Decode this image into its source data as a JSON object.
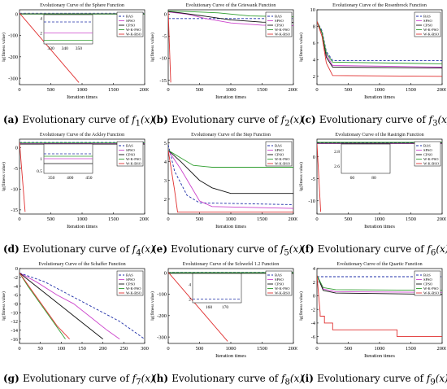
{
  "chart_data": [
    {
      "id": "a",
      "type": "line",
      "title": "Evolutionary Curve of the Sphere Function",
      "xlabel": "Iteration times",
      "ylabel": "lg(fitness value)",
      "xlim": [
        0,
        2000
      ],
      "ylim": [
        -330,
        20
      ],
      "xticks": [
        0,
        500,
        1000,
        1500,
        2000
      ],
      "yticks": [
        0,
        -100,
        -200,
        -300
      ],
      "legend": "top-right",
      "series": [
        {
          "name": "BAS",
          "color": "#1f2fa8",
          "dash": "3,2",
          "x": [
            0,
            2000
          ],
          "y": [
            3.5,
            3.5
          ]
        },
        {
          "name": "SPSO",
          "color": "#cc44cc",
          "x": [
            0,
            2000
          ],
          "y": [
            2,
            2
          ]
        },
        {
          "name": "CPSO",
          "color": "#111111",
          "x": [
            0,
            2000
          ],
          "y": [
            0,
            0
          ]
        },
        {
          "name": "W-K-PSO",
          "color": "#2f9e2f",
          "x": [
            0,
            2000
          ],
          "y": [
            1,
            1
          ]
        },
        {
          "name": "W-K-BSO",
          "color": "#e03030",
          "x": [
            0,
            950
          ],
          "y": [
            4,
            -320
          ]
        }
      ],
      "inset": {
        "xlim": [
          325,
          360
        ],
        "ylim": [
          0.5,
          4.5
        ],
        "xticks": [
          330,
          340,
          350
        ],
        "yticks": [
          2,
          4
        ]
      }
    },
    {
      "id": "b",
      "type": "line",
      "title": "Evolutionary Curve of the Griewank Function",
      "xlabel": "Iteration times",
      "ylabel": "lg(fitness value)",
      "xlim": [
        0,
        2000
      ],
      "ylim": [
        -16,
        1
      ],
      "xticks": [
        0,
        500,
        1000,
        1500,
        2000
      ],
      "yticks": [
        0,
        -5,
        -10,
        -15
      ],
      "legend": "right",
      "series": [
        {
          "name": "BAS",
          "color": "#1f2fa8",
          "dash": "3,2",
          "x": [
            0,
            2000
          ],
          "y": [
            -1,
            -1
          ]
        },
        {
          "name": "SPSO",
          "color": "#cc44cc",
          "x": [
            0,
            300,
            600,
            1000,
            1500,
            2000
          ],
          "y": [
            0.5,
            0,
            -1,
            -2,
            -2.5,
            -2.6
          ]
        },
        {
          "name": "CPSO",
          "color": "#111111",
          "x": [
            0,
            200,
            500,
            1000,
            1500,
            2000
          ],
          "y": [
            0.6,
            0.3,
            -0.3,
            -1.3,
            -1.8,
            -1.9
          ]
        },
        {
          "name": "W-K-PSO",
          "color": "#2f9e2f",
          "x": [
            0,
            300,
            800,
            1300,
            2000
          ],
          "y": [
            0.7,
            0.6,
            0.3,
            -0.4,
            -0.6
          ]
        },
        {
          "name": "W-K-BSO",
          "color": "#e03030",
          "x": [
            0,
            40
          ],
          "y": [
            0.5,
            -15.5
          ]
        }
      ]
    },
    {
      "id": "c",
      "type": "line",
      "title": "Evolutionary Curve of the Rosenbrock Function",
      "xlabel": "Iteration times",
      "ylabel": "lg(fitness value)",
      "xlim": [
        0,
        2000
      ],
      "ylim": [
        1,
        10
      ],
      "xticks": [
        0,
        500,
        1000,
        1500,
        2000
      ],
      "yticks": [
        2,
        4,
        6,
        8,
        10
      ],
      "legend": "top-right",
      "series": [
        {
          "name": "BAS",
          "color": "#1f2fa8",
          "dash": "3,2",
          "x": [
            0,
            80,
            150,
            250,
            2000
          ],
          "y": [
            8.6,
            7.5,
            5,
            3.9,
            3.9
          ]
        },
        {
          "name": "SPSO",
          "color": "#cc44cc",
          "x": [
            0,
            80,
            150,
            250,
            2000
          ],
          "y": [
            8.6,
            7.3,
            4.6,
            3.3,
            3.1
          ]
        },
        {
          "name": "CPSO",
          "color": "#111111",
          "x": [
            0,
            80,
            150,
            250,
            2000
          ],
          "y": [
            8.6,
            7.2,
            4.3,
            3.1,
            3.0
          ]
        },
        {
          "name": "W-K-PSO",
          "color": "#2f9e2f",
          "x": [
            0,
            80,
            150,
            250,
            2000
          ],
          "y": [
            8.6,
            7.3,
            4.8,
            3.7,
            3.5
          ]
        },
        {
          "name": "W-K-BSO",
          "color": "#e03030",
          "x": [
            0,
            80,
            150,
            250,
            2000
          ],
          "y": [
            8.6,
            6.8,
            3.6,
            2.1,
            2.0
          ]
        }
      ]
    },
    {
      "id": "d",
      "type": "line",
      "title": "Evolutionary Curve of the Ackley Function",
      "xlabel": "Iteration times",
      "ylabel": "lg(fitness value)",
      "xlim": [
        0,
        2000
      ],
      "ylim": [
        -16,
        2
      ],
      "xticks": [
        0,
        500,
        1000,
        1500,
        2000
      ],
      "yticks": [
        0,
        -5,
        -10,
        -15
      ],
      "legend": "top-right",
      "series": [
        {
          "name": "BAS",
          "color": "#1f2fa8",
          "dash": "3,2",
          "x": [
            0,
            2000
          ],
          "y": [
            1.2,
            1.2
          ]
        },
        {
          "name": "SPSO",
          "color": "#cc44cc",
          "x": [
            0,
            2000
          ],
          "y": [
            1.0,
            1.0
          ]
        },
        {
          "name": "CPSO",
          "color": "#111111",
          "x": [
            0,
            2000
          ],
          "y": [
            0.8,
            0.8
          ]
        },
        {
          "name": "W-K-PSO",
          "color": "#2f9e2f",
          "x": [
            0,
            2000
          ],
          "y": [
            1.1,
            1.1
          ]
        },
        {
          "name": "W-K-BSO",
          "color": "#e03030",
          "x": [
            0,
            90
          ],
          "y": [
            1.3,
            -15.5
          ]
        }
      ],
      "inset": {
        "xlim": [
          330,
          460
        ],
        "ylim": [
          0.4,
          1.6
        ],
        "xticks": [
          350,
          400,
          450
        ],
        "yticks": [
          1,
          0.5
        ]
      }
    },
    {
      "id": "e",
      "type": "line",
      "title": "Evolutionary Curve of the Step Function",
      "xlabel": "Iteration times",
      "ylabel": "",
      "xlim": [
        0,
        2000
      ],
      "ylim": [
        1.2,
        5.2
      ],
      "xticks": [
        0,
        500,
        1000,
        1500,
        2000
      ],
      "yticks": [
        2,
        3,
        4,
        5
      ],
      "legend": "top-right",
      "series": [
        {
          "name": "BAS",
          "color": "#1f2fa8",
          "dash": "3,2",
          "x": [
            0,
            100,
            300,
            500,
            2000
          ],
          "y": [
            4.9,
            3.5,
            2.2,
            1.8,
            1.7
          ]
        },
        {
          "name": "SPSO",
          "color": "#cc44cc",
          "x": [
            0,
            200,
            500,
            700,
            2000
          ],
          "y": [
            4.6,
            3.6,
            1.9,
            1.6,
            1.5
          ]
        },
        {
          "name": "CPSO",
          "color": "#111111",
          "x": [
            0,
            200,
            500,
            700,
            1000,
            2000
          ],
          "y": [
            4.6,
            4.0,
            3.0,
            2.6,
            2.3,
            2.3
          ]
        },
        {
          "name": "W-K-PSO",
          "color": "#2f9e2f",
          "x": [
            0,
            200,
            400,
            700,
            2000
          ],
          "y": [
            4.6,
            4.2,
            3.8,
            3.7,
            3.7
          ]
        },
        {
          "name": "W-K-BSO",
          "color": "#e03030",
          "x": [
            0,
            100,
            150,
            2000
          ],
          "y": [
            4.6,
            2.5,
            1.3,
            1.3
          ]
        }
      ]
    },
    {
      "id": "f",
      "type": "line",
      "title": "Evolutionary Curve of the Rastrigin Function",
      "xlabel": "Iteration times",
      "ylabel": "lg(fitness value)",
      "xlim": [
        0,
        2000
      ],
      "ylim": [
        -13,
        4
      ],
      "xticks": [
        0,
        500,
        1000,
        1500,
        2000
      ],
      "yticks": [
        0,
        -5,
        -10
      ],
      "legend": "top-right",
      "series": [
        {
          "name": "BAS",
          "color": "#1f2fa8",
          "dash": "3,2",
          "x": [
            0,
            2000
          ],
          "y": [
            3.2,
            3.2
          ]
        },
        {
          "name": "SPSO",
          "color": "#cc44cc",
          "x": [
            0,
            2000
          ],
          "y": [
            3.0,
            3.0
          ]
        },
        {
          "name": "CPSO",
          "color": "#111111",
          "x": [
            0,
            2000
          ],
          "y": [
            3.1,
            3.1
          ]
        },
        {
          "name": "W-K-PSO",
          "color": "#2f9e2f",
          "x": [
            0,
            2000
          ],
          "y": [
            3.3,
            3.3
          ]
        },
        {
          "name": "W-K-BSO",
          "color": "#e03030",
          "x": [
            0,
            60
          ],
          "y": [
            3.0,
            -12.5
          ]
        }
      ],
      "inset": {
        "xlim": [
          50,
          95
        ],
        "ylim": [
          2.5,
          2.9
        ],
        "xticks": [
          60,
          80
        ],
        "yticks": [
          2.8,
          2.6
        ]
      }
    },
    {
      "id": "g",
      "type": "line",
      "title": "Evolutionary Curve of the Schaffer Function",
      "xlabel": "",
      "ylabel": "lg(fitness value)",
      "xlim": [
        0,
        300
      ],
      "ylim": [
        -17,
        0
      ],
      "xticks": [
        0,
        50,
        100,
        150,
        200,
        250,
        300
      ],
      "yticks": [
        0,
        -2,
        -4,
        -6,
        -8,
        -10,
        -12,
        -14,
        -16
      ],
      "legend": "top-right",
      "series": [
        {
          "name": "BAS",
          "color": "#1f2fa8",
          "dash": "3,2",
          "x": [
            0,
            60,
            120,
            160,
            200,
            240,
            270,
            300
          ],
          "y": [
            -1,
            -3,
            -6,
            -8,
            -10,
            -12,
            -14,
            -16
          ]
        },
        {
          "name": "SPSO",
          "color": "#cc44cc",
          "x": [
            0,
            40,
            90,
            130,
            170,
            210,
            240
          ],
          "y": [
            -1,
            -3,
            -6,
            -8,
            -11,
            -14,
            -16
          ]
        },
        {
          "name": "CPSO",
          "color": "#111111",
          "x": [
            0,
            40,
            80,
            120,
            160,
            200
          ],
          "y": [
            -1,
            -4,
            -7,
            -10,
            -13,
            -16
          ]
        },
        {
          "name": "W-K-PSO",
          "color": "#2f9e2f",
          "x": [
            0,
            20,
            50,
            80,
            110
          ],
          "y": [
            -1,
            -4,
            -8,
            -12,
            -16
          ]
        },
        {
          "name": "W-K-BSO",
          "color": "#e03030",
          "x": [
            0,
            30,
            60,
            90,
            120
          ],
          "y": [
            -1,
            -5,
            -9,
            -13,
            -16
          ]
        }
      ]
    },
    {
      "id": "h",
      "type": "line",
      "title": "Evolutionary Curve of the Schwefel 1.2 Function",
      "xlabel": "Iteration times",
      "ylabel": "lg(fitness value)",
      "xlim": [
        0,
        2000
      ],
      "ylim": [
        -330,
        20
      ],
      "xticks": [
        0,
        500,
        1000,
        1500,
        2000
      ],
      "yticks": [
        0,
        -100,
        -200,
        -300
      ],
      "legend": "top-right",
      "series": [
        {
          "name": "BAS",
          "color": "#1f2fa8",
          "dash": "3,2",
          "x": [
            0,
            2000
          ],
          "y": [
            2,
            2
          ]
        },
        {
          "name": "SPSO",
          "color": "#cc44cc",
          "x": [
            0,
            2000
          ],
          "y": [
            0,
            0
          ]
        },
        {
          "name": "CPSO",
          "color": "#111111",
          "x": [
            0,
            2000
          ],
          "y": [
            -2,
            -2
          ]
        },
        {
          "name": "W-K-PSO",
          "color": "#2f9e2f",
          "x": [
            0,
            2000
          ],
          "y": [
            1,
            1
          ]
        },
        {
          "name": "W-K-BSO",
          "color": "#e03030",
          "x": [
            0,
            950
          ],
          "y": [
            3,
            -320
          ]
        }
      ],
      "inset": {
        "xlim": [
          150,
          180
        ],
        "ylim": [
          1.5,
          5.5
        ],
        "xticks": [
          160,
          170
        ],
        "yticks": [
          4,
          2
        ]
      }
    },
    {
      "id": "i",
      "type": "line",
      "title": "Evolutionary Curve of the Quartic Function",
      "xlabel": "Iteration times",
      "ylabel": "lg(fitness value)",
      "xlim": [
        0,
        2000
      ],
      "ylim": [
        -7,
        4
      ],
      "xticks": [
        0,
        500,
        1000,
        1500,
        2000
      ],
      "yticks": [
        4,
        2,
        0,
        -2,
        -4,
        -6
      ],
      "legend": "top-right",
      "series": [
        {
          "name": "BAS",
          "color": "#1f2fa8",
          "dash": "3,2",
          "x": [
            0,
            2000
          ],
          "y": [
            2.8,
            2.8
          ]
        },
        {
          "name": "SPSO",
          "color": "#cc44cc",
          "x": [
            0,
            100,
            300,
            2000
          ],
          "y": [
            3,
            1.0,
            0.6,
            0.5
          ]
        },
        {
          "name": "CPSO",
          "color": "#111111",
          "x": [
            0,
            100,
            300,
            2000
          ],
          "y": [
            3,
            0.8,
            0.4,
            0.2
          ]
        },
        {
          "name": "W-K-PSO",
          "color": "#2f9e2f",
          "x": [
            0,
            100,
            300,
            2000
          ],
          "y": [
            3,
            1.2,
            0.9,
            0.8
          ]
        },
        {
          "name": "W-K-BSO",
          "color": "#e03030",
          "x": [
            0,
            50,
            50,
            120,
            120,
            250,
            250,
            1280,
            1280,
            2000
          ],
          "y": [
            3,
            -2.5,
            -3,
            -3,
            -4,
            -4,
            -5,
            -5,
            -6,
            -6
          ]
        }
      ]
    }
  ],
  "captions": [
    {
      "id": "a",
      "label": "(a)",
      "text": "Evolutionary curve of",
      "func": "f",
      "sub": "1",
      "arg": "(x)"
    },
    {
      "id": "b",
      "label": "(b)",
      "text": "Evolutionary curve of",
      "func": "f",
      "sub": "2",
      "arg": "(x)"
    },
    {
      "id": "c",
      "label": "(c)",
      "text": "Evolutionary curve of",
      "func": "f",
      "sub": "3",
      "arg": "(x)"
    },
    {
      "id": "d",
      "label": "(d)",
      "text": "Evolutionary curve of",
      "func": "f",
      "sub": "4",
      "arg": "(x)"
    },
    {
      "id": "e",
      "label": "(e)",
      "text": "Evolutionary curve of",
      "func": "f",
      "sub": "5",
      "arg": "(x)"
    },
    {
      "id": "f",
      "label": "(f)",
      "text": "Evolutionary curve of",
      "func": "f",
      "sub": "6",
      "arg": "(x)"
    },
    {
      "id": "g",
      "label": "(g)",
      "text": "Evolutionary curve of",
      "func": "f",
      "sub": "7",
      "arg": "(x)"
    },
    {
      "id": "h",
      "label": "(h)",
      "text": "Evolutionary curve of",
      "func": "f",
      "sub": "8",
      "arg": "(x)"
    },
    {
      "id": "i",
      "label": "(i)",
      "text": "Evolutionary curve of",
      "func": "f",
      "sub": "9",
      "arg": "(x)"
    }
  ]
}
